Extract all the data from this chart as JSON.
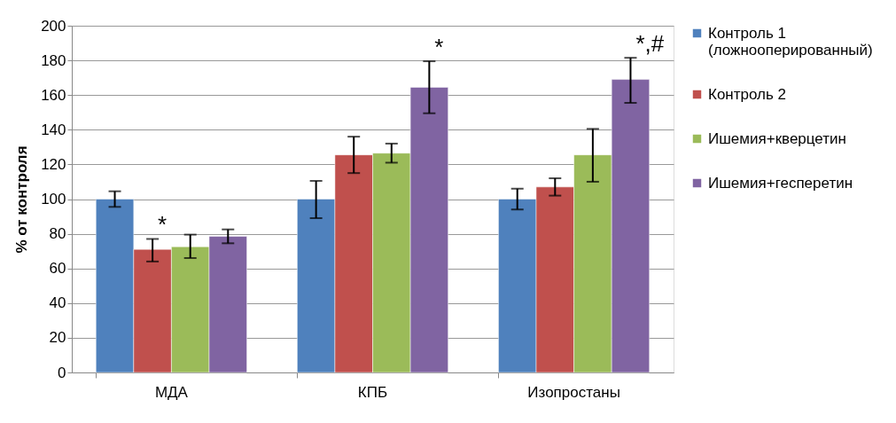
{
  "chart_data": {
    "type": "bar",
    "ylabel": "% от контроля",
    "categories": [
      "МДА",
      "КПБ",
      "Изопростаны"
    ],
    "series": [
      {
        "name": "Контроль 1 (ложнооперированный)",
        "color": "#4f81bd",
        "values": [
          100,
          100,
          100
        ],
        "errors": [
          [
            95.5,
            104.5
          ],
          [
            89,
            110.5
          ],
          [
            94,
            106
          ]
        ]
      },
      {
        "name": "Контроль 2",
        "color": "#c0504d",
        "values": [
          71,
          125.5,
          107
        ],
        "errors": [
          [
            64,
            77
          ],
          [
            115,
            136
          ],
          [
            102,
            112
          ]
        ],
        "value_labels": [
          "*",
          null,
          null
        ]
      },
      {
        "name": "Ишемия+кверцетин",
        "color": "#9bbb59",
        "values": [
          72.5,
          126.5,
          125.5
        ],
        "errors": [
          [
            66,
            79.5
          ],
          [
            121,
            132
          ],
          [
            110,
            140.5
          ]
        ]
      },
      {
        "name": "Ишемия+гесперетин",
        "color": "#8064a2",
        "values": [
          78.5,
          164.5,
          169
        ],
        "errors": [
          [
            74.5,
            82.5
          ],
          [
            149.5,
            179.5
          ],
          [
            155.5,
            181.5
          ]
        ],
        "value_labels": [
          null,
          "*",
          "*,#"
        ]
      }
    ],
    "ylim": [
      0,
      200
    ],
    "yticks": [
      0,
      20,
      40,
      60,
      80,
      100,
      120,
      140,
      160,
      180,
      200
    ],
    "grid": "y",
    "legend": "right"
  }
}
